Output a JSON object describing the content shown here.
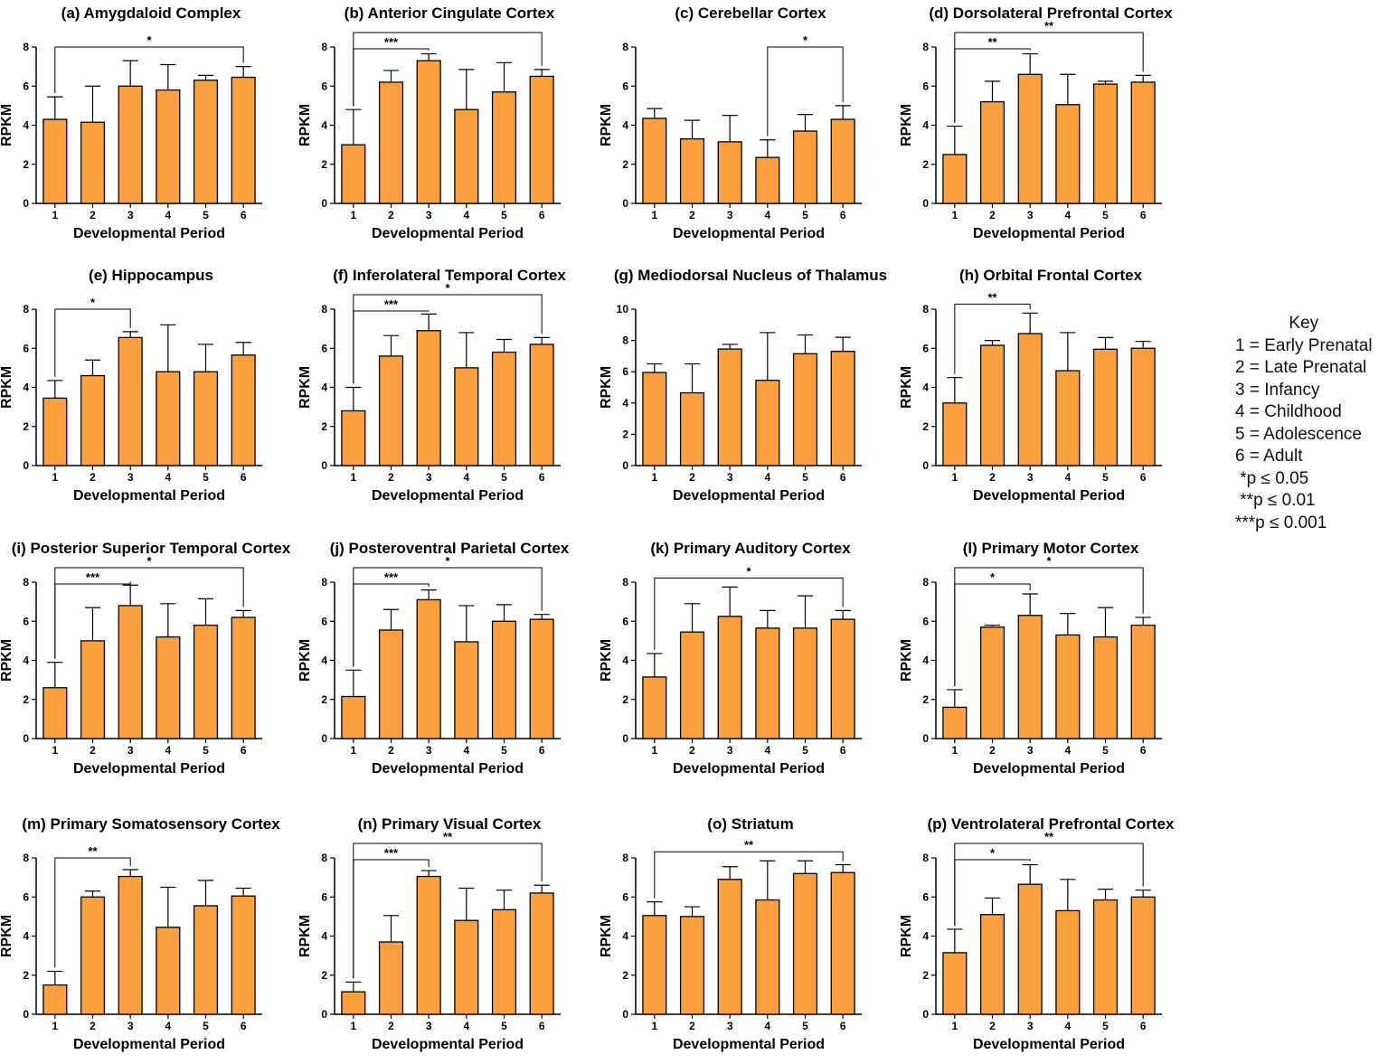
{
  "chart_data": [
    {
      "type": "bar",
      "title": "(a) Amygdaloid Complex",
      "categories": [
        "1",
        "2",
        "3",
        "4",
        "5",
        "6"
      ],
      "values": [
        4.3,
        4.15,
        6.0,
        5.8,
        6.3,
        6.45
      ],
      "errors": [
        1.15,
        1.85,
        1.3,
        1.3,
        0.25,
        0.55
      ],
      "ylim": [
        0,
        8
      ],
      "yticks": [
        0,
        2,
        4,
        6,
        8
      ],
      "xlabel": "Developmental Period",
      "ylabel": "RPKM",
      "significance": [
        {
          "from": 1,
          "to": 6,
          "label": "*"
        }
      ]
    },
    {
      "type": "bar",
      "title": "(b) Anterior Cingulate Cortex",
      "categories": [
        "1",
        "2",
        "3",
        "4",
        "5",
        "6"
      ],
      "values": [
        3.0,
        6.2,
        7.3,
        4.8,
        5.7,
        6.5
      ],
      "errors": [
        1.8,
        0.6,
        0.35,
        2.05,
        1.5,
        0.35
      ],
      "ylim": [
        0,
        8
      ],
      "yticks": [
        0,
        2,
        4,
        6,
        8
      ],
      "xlabel": "Developmental Period",
      "ylabel": "RPKM",
      "significance": [
        {
          "from": 1,
          "to": 3,
          "label": "***"
        },
        {
          "from": 1,
          "to": 6,
          "label": ""
        }
      ]
    },
    {
      "type": "bar",
      "title": "(c) Cerebellar Cortex",
      "categories": [
        "1",
        "2",
        "3",
        "4",
        "5",
        "6"
      ],
      "values": [
        4.35,
        3.3,
        3.15,
        2.35,
        3.7,
        4.3
      ],
      "errors": [
        0.5,
        0.95,
        1.35,
        0.9,
        0.85,
        0.7
      ],
      "ylim": [
        0,
        8
      ],
      "yticks": [
        0,
        2,
        4,
        6,
        8
      ],
      "xlabel": "Developmental Period",
      "ylabel": "RPKM",
      "significance": [
        {
          "from": 4,
          "to": 6,
          "label": "*"
        }
      ]
    },
    {
      "type": "bar",
      "title": "(d) Dorsolateral Prefrontal Cortex",
      "categories": [
        "1",
        "2",
        "3",
        "4",
        "5",
        "6"
      ],
      "values": [
        2.5,
        5.2,
        6.6,
        5.05,
        6.1,
        6.2
      ],
      "errors": [
        1.45,
        1.05,
        1.05,
        1.55,
        0.15,
        0.35
      ],
      "ylim": [
        0,
        8
      ],
      "yticks": [
        0,
        2,
        4,
        6,
        8
      ],
      "xlabel": "Developmental Period",
      "ylabel": "RPKM",
      "significance": [
        {
          "from": 1,
          "to": 3,
          "label": "**"
        },
        {
          "from": 1,
          "to": 6,
          "label": "**"
        }
      ]
    },
    {
      "type": "bar",
      "title": "(e) Hippocampus",
      "categories": [
        "1",
        "2",
        "3",
        "4",
        "5",
        "6"
      ],
      "values": [
        3.45,
        4.6,
        6.55,
        4.8,
        4.8,
        5.65
      ],
      "errors": [
        0.9,
        0.8,
        0.3,
        2.4,
        1.4,
        0.65
      ],
      "ylim": [
        0,
        8
      ],
      "yticks": [
        0,
        2,
        4,
        6,
        8
      ],
      "xlabel": "Developmental Period",
      "ylabel": "RPKM",
      "significance": [
        {
          "from": 1,
          "to": 3,
          "label": "*"
        }
      ]
    },
    {
      "type": "bar",
      "title": "(f) Inferolateral Temporal Cortex",
      "categories": [
        "1",
        "2",
        "3",
        "4",
        "5",
        "6"
      ],
      "values": [
        2.8,
        5.6,
        6.9,
        5.0,
        5.8,
        6.2
      ],
      "errors": [
        1.2,
        1.05,
        0.85,
        1.8,
        0.65,
        0.35
      ],
      "ylim": [
        0,
        8
      ],
      "yticks": [
        0,
        2,
        4,
        6,
        8
      ],
      "xlabel": "Developmental Period",
      "ylabel": "RPKM",
      "significance": [
        {
          "from": 1,
          "to": 3,
          "label": "***"
        },
        {
          "from": 1,
          "to": 6,
          "label": "*"
        }
      ]
    },
    {
      "type": "bar",
      "title": "(g) Mediodorsal Nucleus of Thalamus",
      "categories": [
        "1",
        "2",
        "3",
        "4",
        "5",
        "6"
      ],
      "values": [
        5.95,
        4.65,
        7.45,
        5.45,
        7.15,
        7.3
      ],
      "errors": [
        0.55,
        1.85,
        0.3,
        3.05,
        1.2,
        0.9
      ],
      "ylim": [
        0,
        10
      ],
      "yticks": [
        0,
        2,
        4,
        6,
        8,
        10
      ],
      "xlabel": "Developmental Period",
      "ylabel": "RPKM",
      "significance": []
    },
    {
      "type": "bar",
      "title": "(h) Orbital Frontal Cortex",
      "categories": [
        "1",
        "2",
        "3",
        "4",
        "5",
        "6"
      ],
      "values": [
        3.2,
        6.15,
        6.75,
        4.85,
        5.95,
        6.0
      ],
      "errors": [
        1.3,
        0.25,
        1.05,
        1.95,
        0.6,
        0.35
      ],
      "ylim": [
        0,
        8
      ],
      "yticks": [
        0,
        2,
        4,
        6,
        8
      ],
      "xlabel": "Developmental Period",
      "ylabel": "RPKM",
      "significance": [
        {
          "from": 1,
          "to": 3,
          "label": "**"
        }
      ]
    },
    {
      "type": "bar",
      "title": "(i) Posterior Superior Temporal Cortex",
      "categories": [
        "1",
        "2",
        "3",
        "4",
        "5",
        "6"
      ],
      "values": [
        2.6,
        5.0,
        6.8,
        5.2,
        5.8,
        6.2
      ],
      "errors": [
        1.3,
        1.7,
        1.05,
        1.7,
        1.35,
        0.35
      ],
      "ylim": [
        0,
        8
      ],
      "yticks": [
        0,
        2,
        4,
        6,
        8
      ],
      "xlabel": "Developmental Period",
      "ylabel": "RPKM",
      "significance": [
        {
          "from": 1,
          "to": 3,
          "label": "***"
        },
        {
          "from": 1,
          "to": 6,
          "label": "*"
        }
      ]
    },
    {
      "type": "bar",
      "title": "(j) Posteroventral Parietal Cortex",
      "categories": [
        "1",
        "2",
        "3",
        "4",
        "5",
        "6"
      ],
      "values": [
        2.15,
        5.55,
        7.1,
        4.95,
        6.0,
        6.1
      ],
      "errors": [
        1.35,
        1.05,
        0.5,
        1.85,
        0.85,
        0.25
      ],
      "ylim": [
        0,
        8
      ],
      "yticks": [
        0,
        2,
        4,
        6,
        8
      ],
      "xlabel": "Developmental Period",
      "ylabel": "RPKM",
      "significance": [
        {
          "from": 1,
          "to": 3,
          "label": "***"
        },
        {
          "from": 1,
          "to": 6,
          "label": "*"
        }
      ]
    },
    {
      "type": "bar",
      "title": "(k) Primary Auditory Cortex",
      "categories": [
        "1",
        "2",
        "3",
        "4",
        "5",
        "6"
      ],
      "values": [
        3.15,
        5.45,
        6.25,
        5.65,
        5.65,
        6.1
      ],
      "errors": [
        1.2,
        1.45,
        1.5,
        0.9,
        1.65,
        0.45
      ],
      "ylim": [
        0,
        8
      ],
      "yticks": [
        0,
        2,
        4,
        6,
        8
      ],
      "xlabel": "Developmental Period",
      "ylabel": "RPKM",
      "significance": [
        {
          "from": 1,
          "to": 6,
          "label": "*"
        }
      ]
    },
    {
      "type": "bar",
      "title": "(l) Primary Motor Cortex",
      "categories": [
        "1",
        "2",
        "3",
        "4",
        "5",
        "6"
      ],
      "values": [
        1.6,
        5.7,
        6.3,
        5.3,
        5.2,
        5.8
      ],
      "errors": [
        0.9,
        0.1,
        1.1,
        1.1,
        1.5,
        0.4
      ],
      "ylim": [
        0,
        8
      ],
      "yticks": [
        0,
        2,
        4,
        6,
        8
      ],
      "xlabel": "Developmental Period",
      "ylabel": "RPKM",
      "significance": [
        {
          "from": 1,
          "to": 3,
          "label": "*"
        },
        {
          "from": 1,
          "to": 6,
          "label": "*"
        }
      ]
    },
    {
      "type": "bar",
      "title": "(m) Primary Somatosensory Cortex",
      "categories": [
        "1",
        "2",
        "3",
        "4",
        "5",
        "6"
      ],
      "values": [
        1.5,
        6.0,
        7.05,
        4.45,
        5.55,
        6.05
      ],
      "errors": [
        0.7,
        0.3,
        0.35,
        2.05,
        1.3,
        0.4
      ],
      "ylim": [
        0,
        8
      ],
      "yticks": [
        0,
        2,
        4,
        6,
        8
      ],
      "xlabel": "Developmental Period",
      "ylabel": "RPKM",
      "significance": [
        {
          "from": 1,
          "to": 3,
          "label": "**"
        }
      ]
    },
    {
      "type": "bar",
      "title": "(n) Primary Visual Cortex",
      "categories": [
        "1",
        "2",
        "3",
        "4",
        "5",
        "6"
      ],
      "values": [
        1.15,
        3.7,
        7.05,
        4.8,
        5.35,
        6.2
      ],
      "errors": [
        0.5,
        1.35,
        0.3,
        1.65,
        1.0,
        0.4
      ],
      "ylim": [
        0,
        8
      ],
      "yticks": [
        0,
        2,
        4,
        6,
        8
      ],
      "xlabel": "Developmental Period",
      "ylabel": "RPKM",
      "significance": [
        {
          "from": 1,
          "to": 3,
          "label": "***"
        },
        {
          "from": 1,
          "to": 6,
          "label": "**"
        }
      ]
    },
    {
      "type": "bar",
      "title": "(o) Striatum",
      "categories": [
        "1",
        "2",
        "3",
        "4",
        "5",
        "6"
      ],
      "values": [
        5.05,
        5.0,
        6.9,
        5.85,
        7.2,
        7.25
      ],
      "errors": [
        0.7,
        0.5,
        0.65,
        2.0,
        0.65,
        0.4
      ],
      "ylim": [
        0,
        8
      ],
      "yticks": [
        0,
        2,
        4,
        6,
        8
      ],
      "xlabel": "Developmental Period",
      "ylabel": "RPKM",
      "significance": [
        {
          "from": 1,
          "to": 6,
          "label": "**"
        }
      ]
    },
    {
      "type": "bar",
      "title": "(p) Ventrolateral Prefrontal Cortex",
      "categories": [
        "1",
        "2",
        "3",
        "4",
        "5",
        "6"
      ],
      "values": [
        3.15,
        5.1,
        6.65,
        5.3,
        5.85,
        6.0
      ],
      "errors": [
        1.2,
        0.85,
        1.0,
        1.6,
        0.55,
        0.35
      ],
      "ylim": [
        0,
        8
      ],
      "yticks": [
        0,
        2,
        4,
        6,
        8
      ],
      "xlabel": "Developmental Period",
      "ylabel": "RPKM",
      "significance": [
        {
          "from": 1,
          "to": 3,
          "label": "*"
        },
        {
          "from": 1,
          "to": 6,
          "label": "**"
        }
      ]
    }
  ],
  "colors": {
    "bar": "#FBA040",
    "stroke": "#000000"
  },
  "key": {
    "title": "Key",
    "items": [
      "1 = Early Prenatal",
      "2 = Late Prenatal",
      "3 = Infancy",
      "4 = Childhood",
      "5 = Adolescence",
      "6 = Adult"
    ],
    "significance": [
      " *p ≤ 0.05",
      " **p ≤ 0.01",
      "***p ≤ 0.001"
    ]
  }
}
